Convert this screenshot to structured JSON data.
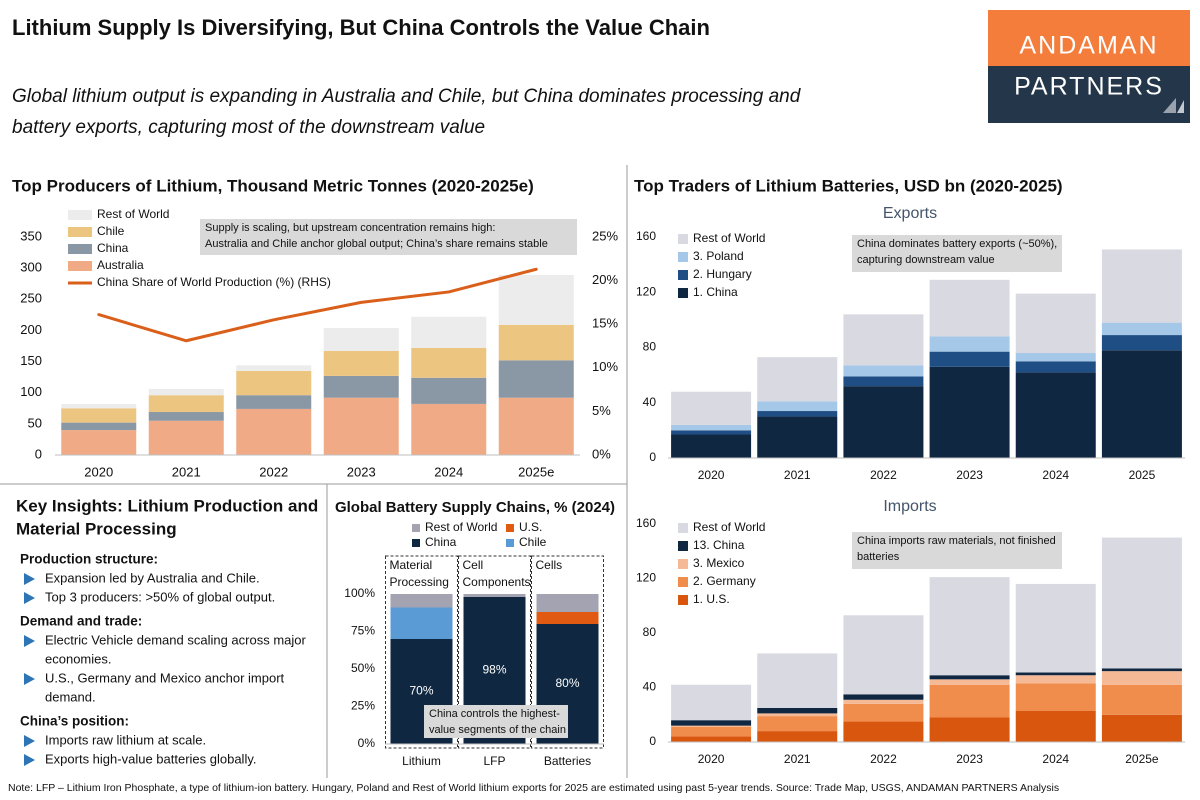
{
  "header": {
    "title": "Lithium Supply Is Diversifying, But China Controls the Value Chain",
    "subtitle": [
      "Global lithium output is expanding in Australia and Chile, but China dominates processing and",
      "battery exports, capturing most of the downstream value"
    ],
    "logo": [
      "ANDAMAN",
      "PARTNERS"
    ]
  },
  "traders_title": "Top Traders of Lithium Batteries, USD bn (2020-2025)",
  "chart_data": [
    {
      "type": "bar",
      "stacked": true,
      "title": "Top Producers of Lithium, Thousand Metric Tonnes (2020-2025e)",
      "categories": [
        "2020",
        "2021",
        "2022",
        "2023",
        "2024",
        "2025e"
      ],
      "series": [
        {
          "name": "Australia",
          "color": "#f0aa86",
          "values": [
            40,
            55,
            74,
            92,
            82,
            92
          ]
        },
        {
          "name": "China",
          "color": "#8a97a5",
          "values": [
            12,
            14,
            22,
            35,
            42,
            60
          ]
        },
        {
          "name": "Chile",
          "color": "#ecc580",
          "values": [
            23,
            27,
            39,
            40,
            48,
            57
          ]
        },
        {
          "name": "Rest of World",
          "color": "#ececec",
          "values": [
            7,
            10,
            9,
            37,
            50,
            80
          ]
        },
        {
          "name": "China Share of World Production (%) (RHS)",
          "type": "line",
          "axis": "y2",
          "color": "#d95f1a",
          "values": [
            16.1,
            13.1,
            15.5,
            17.5,
            18.7,
            21.3
          ]
        }
      ],
      "ylim": [
        0,
        350
      ],
      "yticks": [
        0,
        50,
        100,
        150,
        200,
        250,
        300,
        350
      ],
      "y2lim": [
        0,
        25
      ],
      "y2ticks": [
        {
          "value": 0,
          "label": "0%"
        },
        {
          "value": 5,
          "label": "5%"
        },
        {
          "value": 10,
          "label": "10%"
        },
        {
          "value": 15,
          "label": "15%"
        },
        {
          "value": 20,
          "label": "20%"
        },
        {
          "value": 25,
          "label": "25%"
        }
      ],
      "annotation": [
        "Supply is scaling, but upstream concentration remains high:",
        "Australia and Chile anchor global output; China’s share remains stable"
      ]
    },
    {
      "type": "bar",
      "stacked": true,
      "title": "Global Battery Supply Chains, % (2024)",
      "categories": [
        "Lithium",
        "LFP",
        "Batteries"
      ],
      "groups": [
        [
          "Material",
          "Processing"
        ],
        [
          "Cell",
          "Components"
        ],
        [
          "Cells"
        ]
      ],
      "series": [
        {
          "name": "China",
          "color": "#0f2741",
          "values": [
            70,
            98,
            80
          ],
          "value_labels": [
            "70%",
            "98%",
            "80%"
          ]
        },
        {
          "name": "U.S.",
          "color": "#e05a12",
          "values": [
            0,
            0,
            8
          ]
        },
        {
          "name": "Chile",
          "color": "#5b9bd5",
          "values": [
            21,
            0,
            0
          ]
        },
        {
          "name": "Rest of World",
          "color": "#a3a3b2",
          "values": [
            9,
            2,
            12
          ]
        }
      ],
      "ylim": [
        0,
        100
      ],
      "yticks": [
        {
          "value": 0,
          "label": "0%"
        },
        {
          "value": 25,
          "label": "25%"
        },
        {
          "value": 50,
          "label": "50%"
        },
        {
          "value": 75,
          "label": "75%"
        },
        {
          "value": 100,
          "label": "100%"
        }
      ],
      "annotation": [
        "China controls the highest-",
        "value segments of the chain"
      ]
    },
    {
      "type": "bar",
      "stacked": true,
      "title": "Exports",
      "categories": [
        "2020",
        "2021",
        "2022",
        "2023",
        "2024",
        "2025"
      ],
      "series": [
        {
          "name": "1. China",
          "color": "#0f2741",
          "values": [
            17,
            30,
            52,
            66,
            62,
            78
          ]
        },
        {
          "name": "2. Hungary",
          "color": "#1f4e85",
          "values": [
            3,
            4,
            7,
            11,
            8,
            11
          ]
        },
        {
          "name": "3. Poland",
          "color": "#a6c8e8",
          "values": [
            4,
            7,
            8,
            11,
            6,
            9
          ]
        },
        {
          "name": "Rest of World",
          "color": "#d9d9e1",
          "values": [
            24,
            32,
            37,
            41,
            43,
            53
          ]
        }
      ],
      "ylim": [
        0,
        160
      ],
      "yticks": [
        0,
        40,
        80,
        120,
        160
      ],
      "annotation": [
        "China dominates battery exports (~50%),",
        "capturing downstream value"
      ]
    },
    {
      "type": "bar",
      "stacked": true,
      "title": "Imports",
      "categories": [
        "2020",
        "2021",
        "2022",
        "2023",
        "2024",
        "2025e"
      ],
      "series": [
        {
          "name": "1. U.S.",
          "color": "#d9560f",
          "values": [
            4,
            8,
            15,
            18,
            23,
            20
          ]
        },
        {
          "name": "2. Germany",
          "color": "#f08c4c",
          "values": [
            7,
            11,
            13,
            24,
            20,
            22
          ]
        },
        {
          "name": "3. Mexico",
          "color": "#f6b995",
          "values": [
            1,
            2,
            3,
            4,
            6,
            10
          ]
        },
        {
          "name": "13. China",
          "color": "#0f2741",
          "values": [
            4,
            4,
            4,
            3,
            2,
            2
          ]
        },
        {
          "name": "Rest of World",
          "color": "#d9d9e1",
          "values": [
            26,
            40,
            58,
            72,
            65,
            96
          ]
        }
      ],
      "ylim": [
        0,
        160
      ],
      "yticks": [
        0,
        40,
        80,
        120,
        160
      ],
      "annotation": [
        "China imports raw materials, not finished",
        "batteries"
      ]
    }
  ],
  "insights": {
    "title": [
      "Key Insights: Lithium Production and",
      "Material Processing"
    ],
    "sections": [
      {
        "heading": "Production structure:",
        "bullets": [
          [
            "Expansion led by Australia and Chile."
          ],
          [
            "Top 3 producers: >50% of global output."
          ]
        ]
      },
      {
        "heading": "Demand and trade:",
        "bullets": [
          [
            "Electric Vehicle demand scaling across major",
            "economies."
          ],
          [
            "U.S., Germany and Mexico anchor import",
            "demand."
          ]
        ]
      },
      {
        "heading": "China’s position:",
        "bullets": [
          [
            "Imports raw lithium at scale."
          ],
          [
            "Exports high-value batteries globally."
          ]
        ]
      }
    ]
  },
  "note": "Note: LFP – Lithium Iron Phosphate, a type of lithium-ion battery. Hungary, Poland and Rest of World lithium exports for 2025 are estimated using past 5-year trends. Source: Trade Map, USGS, ANDAMAN PARTNERS Analysis"
}
